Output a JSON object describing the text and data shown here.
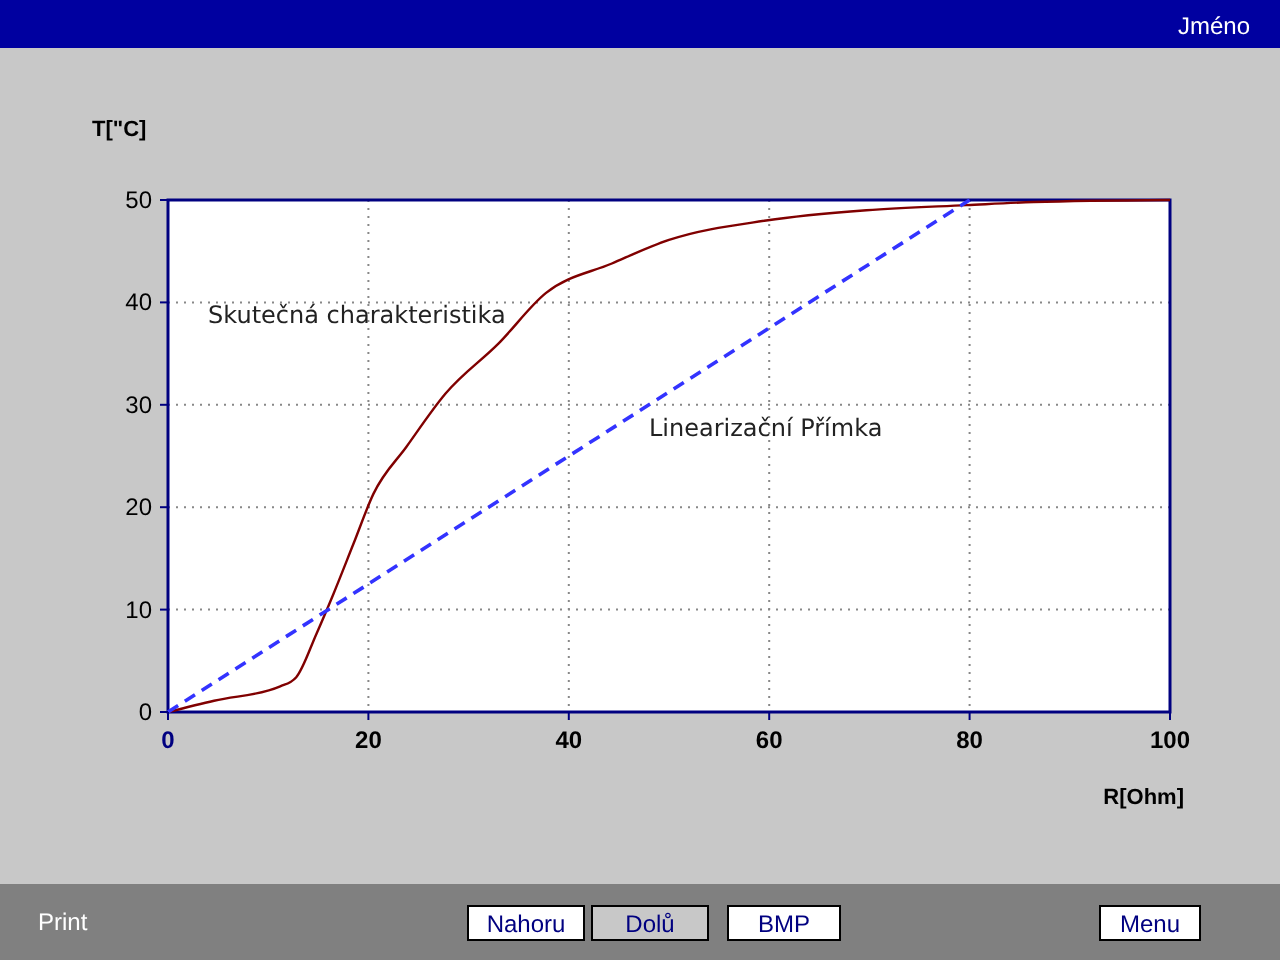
{
  "chart_data": {
    "type": "line",
    "xlabel": "R[Ohm]",
    "ylabel": "T[\"C]",
    "xlim": [
      0,
      100
    ],
    "ylim": [
      0,
      50
    ],
    "xticks": [
      0,
      20,
      40,
      60,
      80,
      100
    ],
    "yticks": [
      0,
      10,
      20,
      30,
      40,
      50
    ],
    "grid": true,
    "marker": "none",
    "annotations": [
      "Jméno",
      "Print",
      "Nahoru",
      "Dolů",
      "BMP",
      "Menu"
    ],
    "series": [
      {
        "name": "Skutečná charakteristika",
        "color": "#800000",
        "line_style": "solid",
        "x": [
          0,
          4.6,
          11.2,
          12.8,
          14.8,
          16.5,
          18.5,
          20.5,
          23.8,
          27.7,
          33,
          37.7,
          44.3,
          50,
          59.7,
          69.7,
          79.7,
          86.4,
          100
        ],
        "values": [
          0,
          1.1,
          2.5,
          3.4,
          7.6,
          11.5,
          16.4,
          21.3,
          25.9,
          31.1,
          36,
          40.9,
          43.8,
          46.1,
          48,
          49,
          49.5,
          49.8,
          50
        ]
      },
      {
        "name": "Linearizační Přímka",
        "color": "#3333ff",
        "line_style": "dashed",
        "x": [
          0,
          80
        ],
        "values": [
          0,
          50
        ]
      }
    ]
  }
}
